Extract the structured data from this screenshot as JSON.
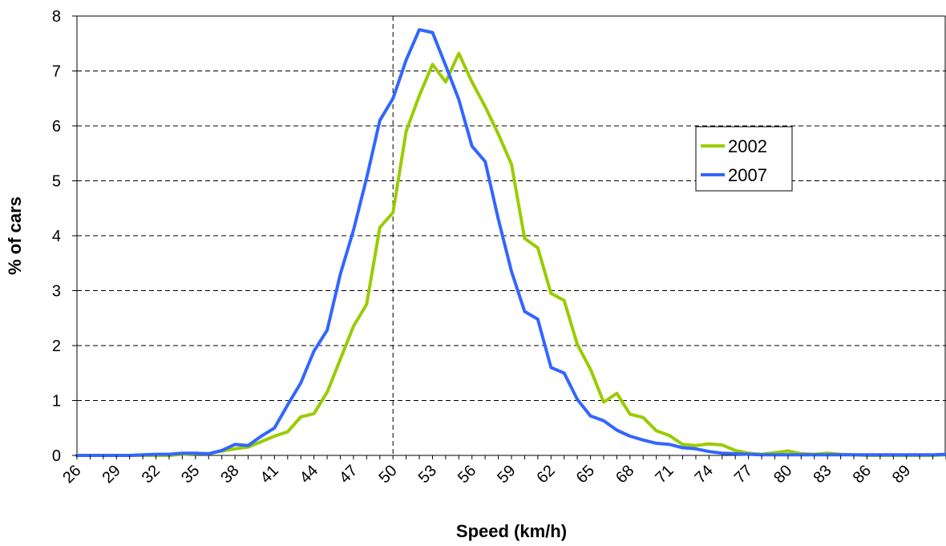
{
  "chart_data": {
    "type": "line",
    "title": "",
    "xlabel": "Speed (km/h)",
    "ylabel": "% of cars",
    "xlim": [
      26,
      92
    ],
    "ylim": [
      0,
      8
    ],
    "x_ticks": [
      26,
      29,
      32,
      35,
      38,
      41,
      44,
      47,
      50,
      53,
      56,
      59,
      62,
      65,
      68,
      71,
      74,
      77,
      80,
      83,
      86,
      89
    ],
    "y_ticks": [
      0,
      1,
      2,
      3,
      4,
      5,
      6,
      7,
      8
    ],
    "grid": "horizontal-dashed",
    "reference_line_x": 50,
    "legend": "right",
    "x": [
      26,
      27,
      28,
      29,
      30,
      31,
      32,
      33,
      34,
      35,
      36,
      37,
      38,
      39,
      40,
      41,
      42,
      43,
      44,
      45,
      46,
      47,
      48,
      49,
      50,
      51,
      52,
      53,
      54,
      55,
      56,
      57,
      58,
      59,
      60,
      61,
      62,
      63,
      64,
      65,
      66,
      67,
      68,
      69,
      70,
      71,
      72,
      73,
      74,
      75,
      76,
      77,
      78,
      79,
      80,
      81,
      82,
      83,
      84,
      85,
      86,
      87,
      88,
      89,
      90,
      91,
      92
    ],
    "series": [
      {
        "name": "2002",
        "color": "#99cc00",
        "values": [
          0,
          0,
          0,
          0,
          0,
          0,
          0,
          0,
          0.02,
          0.03,
          0.03,
          0.08,
          0.12,
          0.15,
          0.25,
          0.35,
          0.43,
          0.7,
          0.76,
          1.15,
          1.75,
          2.35,
          2.75,
          4.15,
          4.42,
          5.9,
          6.55,
          7.12,
          6.8,
          7.32,
          6.8,
          6.35,
          5.85,
          5.3,
          3.95,
          3.78,
          2.95,
          2.82,
          2.02,
          1.57,
          0.97,
          1.13,
          0.75,
          0.69,
          0.45,
          0.36,
          0.2,
          0.18,
          0.21,
          0.19,
          0.09,
          0.04,
          0.02,
          0.05,
          0.08,
          0.03,
          0.02,
          0.04,
          0.02,
          0.01,
          0,
          0,
          0,
          0,
          0,
          0,
          0.01
        ]
      },
      {
        "name": "2007",
        "color": "#3366ff",
        "values": [
          0,
          0,
          0,
          0,
          0,
          0.01,
          0.02,
          0.02,
          0.04,
          0.04,
          0.03,
          0.09,
          0.2,
          0.18,
          0.35,
          0.5,
          0.92,
          1.32,
          1.9,
          2.28,
          3.3,
          4.1,
          5.05,
          6.1,
          6.5,
          7.2,
          7.75,
          7.7,
          7.1,
          6.48,
          5.63,
          5.35,
          4.3,
          3.35,
          2.62,
          2.48,
          1.6,
          1.5,
          1.02,
          0.72,
          0.63,
          0.46,
          0.35,
          0.28,
          0.22,
          0.2,
          0.14,
          0.12,
          0.07,
          0.04,
          0.03,
          0.02,
          0.01,
          0.01,
          0.01,
          0.01,
          0.01,
          0.01,
          0.01,
          0.01,
          0.01,
          0.01,
          0.01,
          0.01,
          0.01,
          0.01,
          0.02
        ]
      }
    ]
  }
}
